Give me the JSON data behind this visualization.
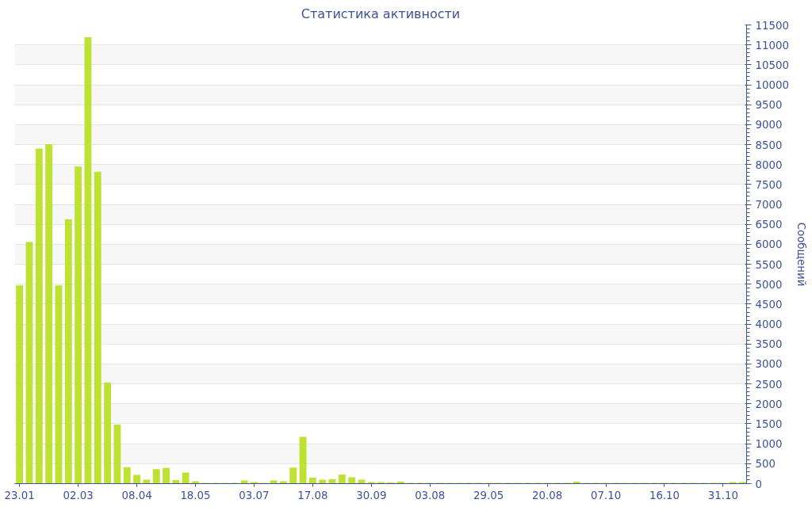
{
  "chart_data": {
    "type": "bar",
    "title": "Статистика активности",
    "ylabel": "Сообщений",
    "categories": [
      "23.01",
      null,
      null,
      null,
      null,
      null,
      "02.03",
      null,
      null,
      null,
      null,
      null,
      "08.04",
      null,
      null,
      null,
      null,
      null,
      "18.05",
      null,
      null,
      null,
      null,
      null,
      "03.07",
      null,
      null,
      null,
      null,
      null,
      "17.08",
      null,
      null,
      null,
      null,
      null,
      "30.09",
      null,
      null,
      null,
      null,
      null,
      "03.08",
      null,
      null,
      null,
      null,
      null,
      "29.05",
      null,
      null,
      null,
      null,
      null,
      "20.08",
      null,
      null,
      null,
      null,
      null,
      "07.10",
      null,
      null,
      null,
      null,
      null,
      "16.10",
      null,
      null,
      null,
      null,
      null,
      "31.10",
      null,
      null
    ],
    "values": [
      4970,
      6060,
      8400,
      8510,
      4970,
      6630,
      7950,
      11190,
      7820,
      2530,
      1480,
      410,
      220,
      100,
      360,
      390,
      90,
      280,
      60,
      20,
      20,
      20,
      20,
      80,
      40,
      20,
      80,
      60,
      400,
      1170,
      150,
      100,
      110,
      230,
      160,
      100,
      40,
      40,
      30,
      50,
      20,
      20,
      20,
      20,
      20,
      20,
      20,
      20,
      20,
      20,
      20,
      20,
      20,
      20,
      20,
      20,
      20,
      50,
      20,
      20,
      20,
      20,
      20,
      20,
      20,
      20,
      20,
      20,
      20,
      20,
      20,
      20,
      20,
      40,
      40
    ],
    "color": "#bde233",
    "ylim": [
      0,
      11500
    ],
    "yticks": [
      0,
      500,
      1000,
      1500,
      2000,
      2500,
      3000,
      3500,
      4000,
      4500,
      5000,
      5500,
      6000,
      6500,
      7000,
      7500,
      8000,
      8500,
      9000,
      9500,
      10000,
      10500,
      11000,
      11500
    ],
    "grid": "y"
  }
}
